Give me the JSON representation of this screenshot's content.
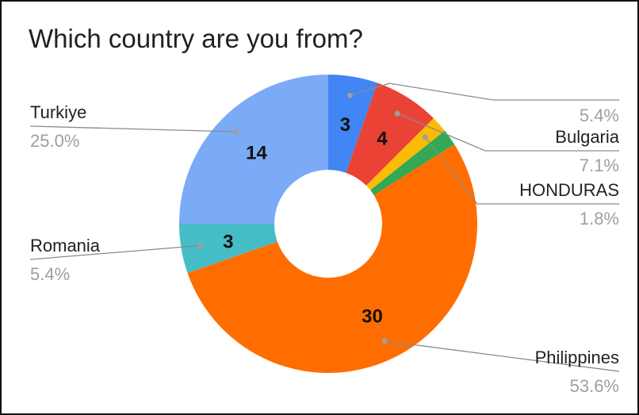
{
  "chart_data": {
    "type": "pie",
    "donut": true,
    "title": "Which country are you from?",
    "slices": [
      {
        "name": "",
        "value": 3,
        "percent": "5.4%",
        "color": "#4285f4"
      },
      {
        "name": "Bulgaria",
        "value": 4,
        "percent": "7.1%",
        "color": "#ea4335"
      },
      {
        "name": "",
        "value": 1,
        "percent": "",
        "color": "#fbbc04"
      },
      {
        "name": "HONDURAS",
        "value": 1,
        "percent": "1.8%",
        "color": "#34a853"
      },
      {
        "name": "Philippines",
        "value": 30,
        "percent": "53.6%",
        "color": "#ff6d01"
      },
      {
        "name": "Romania",
        "value": 3,
        "percent": "5.4%",
        "color": "#46bdc6"
      },
      {
        "name": "Turkiye",
        "value": 14,
        "percent": "25.0%",
        "color": "#7baaf7"
      }
    ],
    "value_labels": [
      "3",
      "4",
      "30",
      "3",
      "14"
    ],
    "legend": "callout-labels"
  }
}
